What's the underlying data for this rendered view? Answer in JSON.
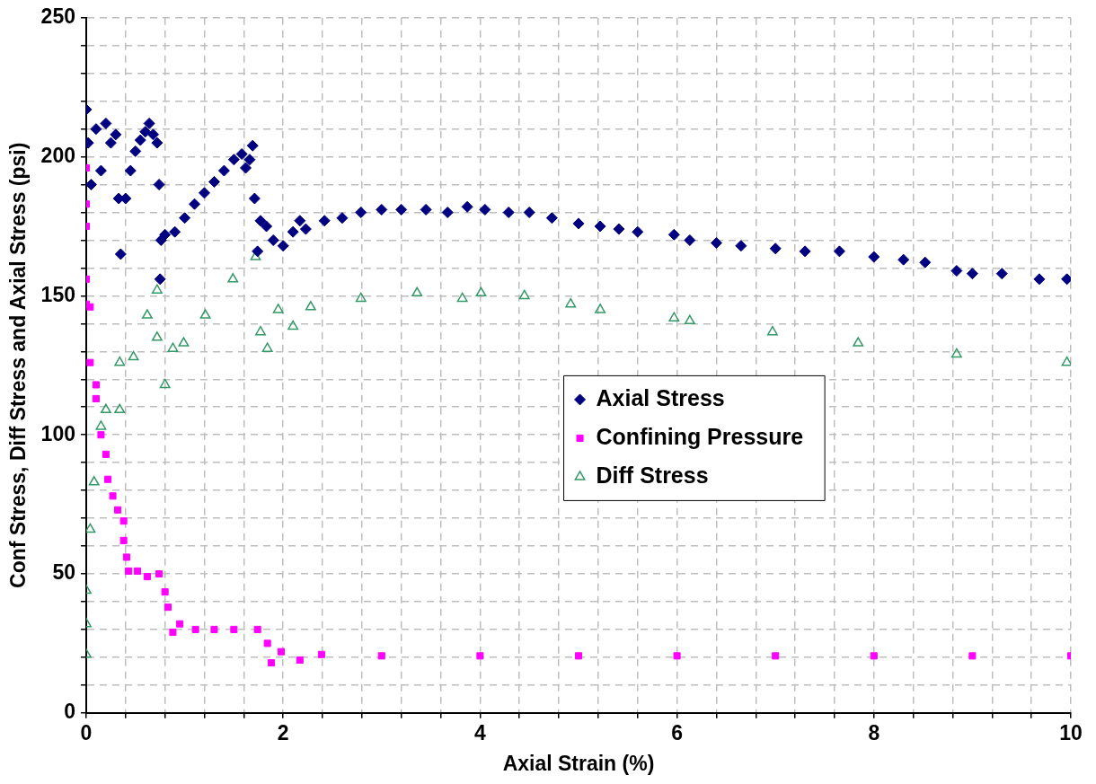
{
  "chart_data": {
    "type": "scatter",
    "xlabel": "Axial Strain (%)",
    "ylabel": "Conf Stress, Diff Stress and Axial Stress (psi)",
    "xlim": [
      0,
      10
    ],
    "ylim": [
      0,
      250
    ],
    "xticks": [
      0,
      {
        "value": 0.4,
        "label": null
      },
      {
        "value": 0.8,
        "label": null
      },
      {
        "value": 1.2,
        "label": null
      },
      {
        "value": 1.6,
        "label": null
      },
      2,
      {
        "value": 2.4,
        "label": null
      },
      {
        "value": 2.8,
        "label": null
      },
      {
        "value": 3.2,
        "label": null
      },
      {
        "value": 3.6,
        "label": null
      },
      4,
      {
        "value": 4.4,
        "label": null
      },
      {
        "value": 4.8,
        "label": null
      },
      {
        "value": 5.2,
        "label": null
      },
      {
        "value": 5.6,
        "label": null
      },
      6,
      {
        "value": 6.4,
        "label": null
      },
      {
        "value": 6.8,
        "label": null
      },
      {
        "value": 7.2,
        "label": null
      },
      {
        "value": 7.6,
        "label": null
      },
      8,
      {
        "value": 8.4,
        "label": null
      },
      {
        "value": 8.8,
        "label": null
      },
      {
        "value": 9.2,
        "label": null
      },
      {
        "value": 9.6,
        "label": null
      },
      10
    ],
    "yticks": [
      0,
      {
        "value": 10,
        "label": null
      },
      {
        "value": 20,
        "label": null
      },
      {
        "value": 30,
        "label": null
      },
      {
        "value": 40,
        "label": null
      },
      50,
      {
        "value": 60,
        "label": null
      },
      {
        "value": 70,
        "label": null
      },
      {
        "value": 80,
        "label": null
      },
      {
        "value": 90,
        "label": null
      },
      100,
      {
        "value": 110,
        "label": null
      },
      {
        "value": 120,
        "label": null
      },
      {
        "value": 130,
        "label": null
      },
      {
        "value": 140,
        "label": null
      },
      150,
      {
        "value": 160,
        "label": null
      },
      {
        "value": 170,
        "label": null
      },
      {
        "value": 180,
        "label": null
      },
      {
        "value": 190,
        "label": null
      },
      200,
      {
        "value": 210,
        "label": null
      },
      {
        "value": 220,
        "label": null
      },
      {
        "value": 230,
        "label": null
      },
      {
        "value": 240,
        "label": null
      },
      250
    ],
    "grid": true,
    "legend": "right",
    "series": [
      {
        "name": "Axial Stress",
        "color": "#000080",
        "marker": "diamond",
        "x": [
          0,
          0.02,
          0.05,
          0.1,
          0.15,
          0.2,
          0.25,
          0.3,
          0.33,
          0.35,
          0.4,
          0.45,
          0.5,
          0.55,
          0.6,
          0.64,
          0.68,
          0.72,
          0.74,
          0.75,
          0.76,
          0.8,
          0.9,
          1.0,
          1.1,
          1.2,
          1.3,
          1.4,
          1.5,
          1.58,
          1.62,
          1.66,
          1.69,
          1.71,
          1.74,
          1.77,
          1.83,
          1.9,
          2.0,
          2.1,
          2.17,
          2.23,
          2.42,
          2.6,
          2.79,
          3.0,
          3.2,
          3.45,
          3.67,
          3.87,
          4.05,
          4.29,
          4.5,
          4.73,
          5.0,
          5.22,
          5.41,
          5.6,
          5.97,
          6.13,
          6.4,
          6.65,
          7.0,
          7.3,
          7.65,
          8.0,
          8.3,
          8.52,
          8.84,
          9.0,
          9.3,
          9.68,
          9.96
        ],
        "values": [
          217,
          205,
          190,
          210,
          195,
          212,
          205,
          208,
          185,
          165,
          185,
          195,
          202,
          206,
          209,
          212,
          208,
          205,
          190,
          156,
          170,
          172,
          173,
          178,
          183,
          187,
          191,
          195,
          199,
          201,
          196,
          199,
          204,
          185,
          166,
          177,
          175,
          170,
          168,
          173,
          177,
          174,
          177,
          178,
          180,
          181,
          181,
          181,
          180,
          182,
          181,
          180,
          180,
          178,
          176,
          175,
          174,
          173,
          172,
          170,
          169,
          168,
          167,
          166,
          166,
          164,
          163,
          162,
          159,
          158,
          158,
          156,
          156
        ]
      },
      {
        "name": "Confining Pressure",
        "color": "#ff00ff",
        "marker": "square",
        "x": [
          0,
          0,
          0,
          0,
          0,
          0.04,
          0.04,
          0.1,
          0.1,
          0.15,
          0.2,
          0.22,
          0.27,
          0.32,
          0.38,
          0.38,
          0.41,
          0.43,
          0.52,
          0.62,
          0.74,
          0.8,
          0.83,
          0.88,
          0.95,
          1.11,
          1.3,
          1.5,
          1.74,
          1.84,
          1.88,
          1.98,
          2.17,
          2.39,
          3,
          4,
          5,
          6,
          7,
          8,
          9,
          10
        ],
        "values": [
          196,
          183,
          175,
          156,
          147,
          146,
          126,
          118,
          113,
          100,
          93,
          84,
          78,
          73,
          69,
          62,
          56,
          51,
          51,
          49,
          50,
          43.5,
          38,
          29,
          32,
          30,
          30,
          30,
          30,
          25,
          18,
          22,
          19,
          21,
          20.5,
          20.5,
          20.5,
          20.5,
          20.5,
          20.5,
          20.5,
          20.5
        ]
      },
      {
        "name": "Diff Stress",
        "color": "#339966",
        "marker": "triangle",
        "x": [
          0,
          0,
          0,
          0.04,
          0.08,
          0.15,
          0.2,
          0.34,
          0.34,
          0.48,
          0.62,
          0.72,
          0.72,
          0.8,
          0.88,
          0.99,
          1.21,
          1.49,
          1.72,
          1.77,
          1.84,
          1.95,
          2.1,
          2.28,
          2.79,
          3.36,
          3.82,
          4.01,
          4.45,
          4.92,
          5.22,
          5.97,
          6.13,
          6.97,
          7.84,
          8.84,
          9.96
        ],
        "values": [
          21,
          32,
          44,
          66,
          83,
          103,
          109,
          126,
          109,
          128,
          143,
          152,
          135,
          118,
          131,
          133,
          143,
          156,
          164,
          137,
          131,
          145,
          139,
          146,
          149,
          151,
          149,
          151,
          150,
          147,
          145,
          142,
          141,
          137,
          133,
          129,
          126
        ]
      }
    ]
  }
}
